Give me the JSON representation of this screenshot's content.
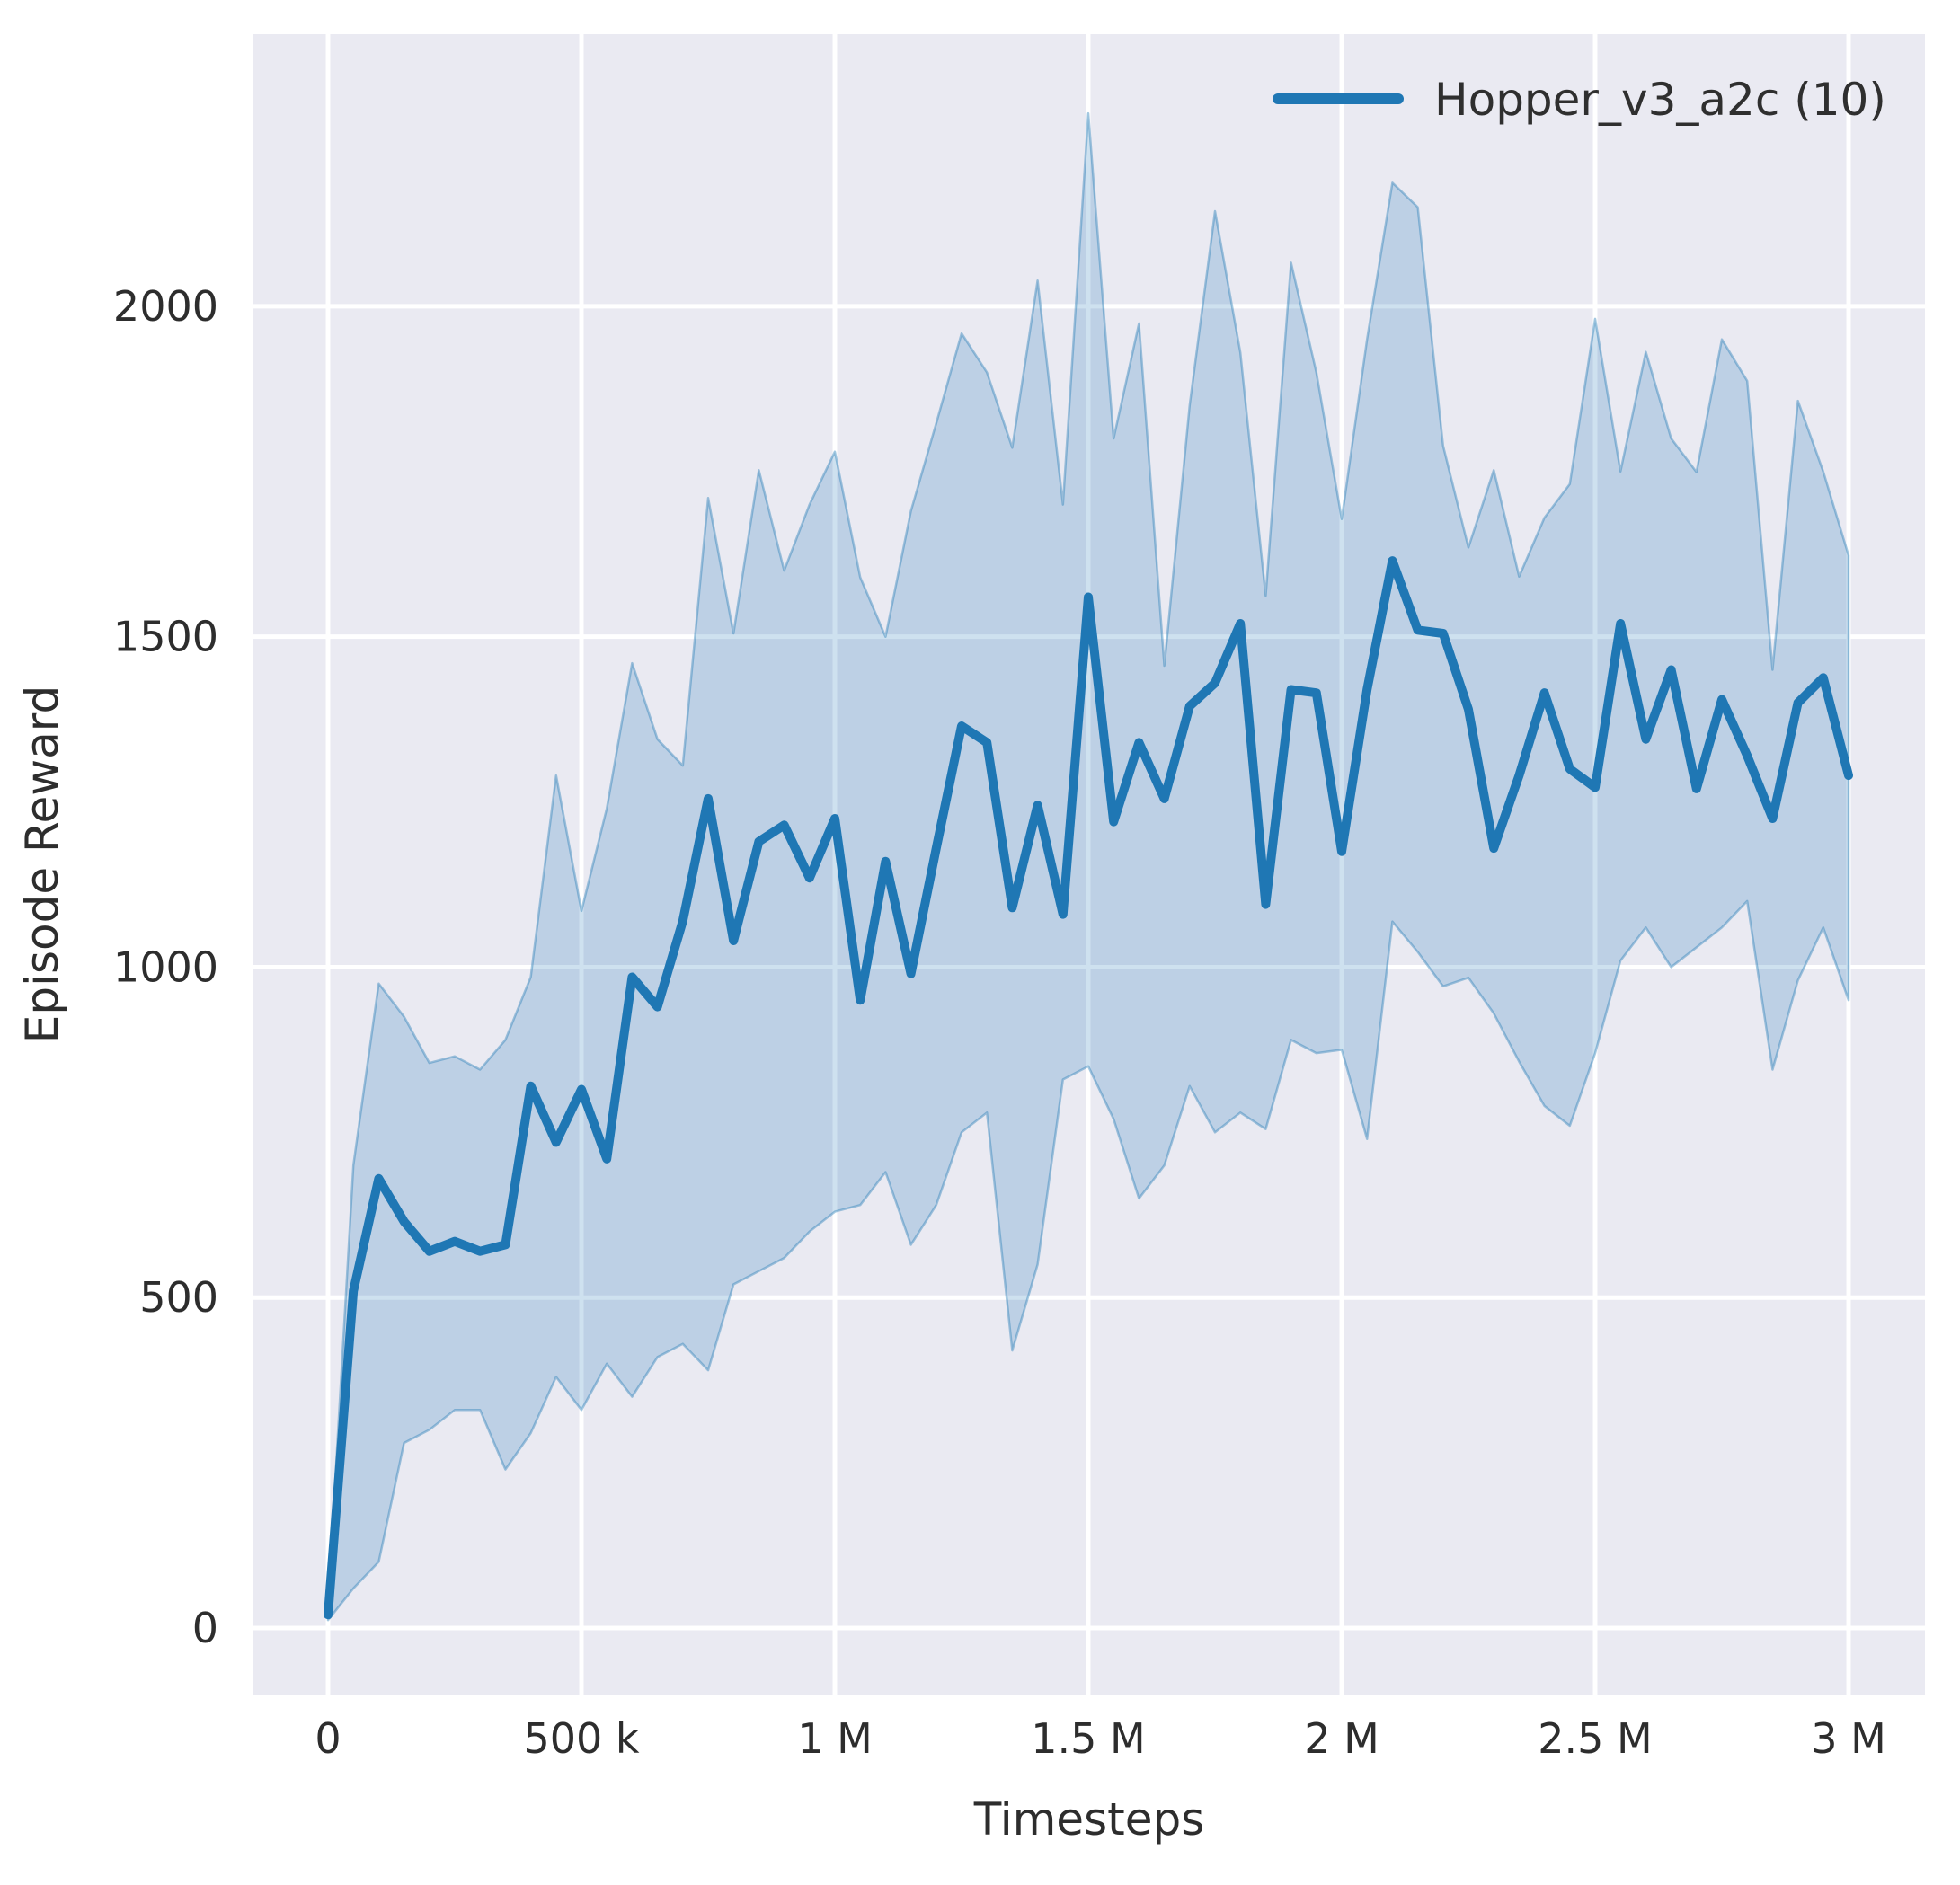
{
  "chart_data": {
    "type": "line",
    "title": "",
    "xlabel": "Timesteps",
    "ylabel": "Episode Reward",
    "grid": true,
    "legend_position": "upper right",
    "legend": [
      {
        "label": "Hopper_v3_a2c (10)",
        "color": "#1f77b4"
      }
    ],
    "x_ticks": [
      {
        "value_k": 0,
        "label": "0"
      },
      {
        "value_k": 500,
        "label": "500 k"
      },
      {
        "value_k": 1000,
        "label": "1 M"
      },
      {
        "value_k": 1500,
        "label": "1.5 M"
      },
      {
        "value_k": 2000,
        "label": "2 M"
      },
      {
        "value_k": 2500,
        "label": "2.5 M"
      },
      {
        "value_k": 3000,
        "label": "3 M"
      }
    ],
    "y_ticks": [
      {
        "value": 0,
        "label": "0"
      },
      {
        "value": 500,
        "label": "500"
      },
      {
        "value": 1000,
        "label": "1000"
      },
      {
        "value": 1500,
        "label": "1500"
      },
      {
        "value": 2000,
        "label": "2000"
      }
    ],
    "xlim_k": [
      -150,
      3150
    ],
    "ylim": [
      -100,
      2410
    ],
    "x_unit": "timesteps (thousands)",
    "series": [
      {
        "name": "Hopper_v3_a2c (10)",
        "color": "#1f77b4",
        "band_alpha": 0.22,
        "x_k": [
          0,
          50,
          100,
          150,
          200,
          250,
          300,
          350,
          400,
          450,
          500,
          550,
          600,
          650,
          700,
          750,
          800,
          850,
          900,
          950,
          1000,
          1050,
          1100,
          1150,
          1200,
          1250,
          1300,
          1350,
          1400,
          1450,
          1500,
          1550,
          1600,
          1650,
          1700,
          1750,
          1800,
          1850,
          1900,
          1950,
          2000,
          2050,
          2100,
          2150,
          2200,
          2250,
          2300,
          2350,
          2400,
          2450,
          2500,
          2550,
          2600,
          2650,
          2700,
          2750,
          2800,
          2850,
          2900,
          2950,
          3000
        ],
        "mean": [
          20,
          510,
          680,
          615,
          570,
          585,
          570,
          580,
          820,
          735,
          815,
          710,
          985,
          940,
          1070,
          1255,
          1040,
          1190,
          1215,
          1135,
          1225,
          950,
          1160,
          990,
          1180,
          1365,
          1340,
          1090,
          1245,
          1080,
          1560,
          1220,
          1340,
          1255,
          1395,
          1430,
          1520,
          1095,
          1420,
          1415,
          1175,
          1420,
          1615,
          1510,
          1505,
          1390,
          1180,
          1290,
          1415,
          1300,
          1272,
          1520,
          1345,
          1450,
          1270,
          1405,
          1320,
          1225,
          1400,
          1438,
          1290
        ],
        "band_low": [
          12,
          60,
          100,
          280,
          300,
          330,
          330,
          240,
          295,
          380,
          330,
          400,
          350,
          410,
          430,
          390,
          520,
          540,
          560,
          600,
          630,
          640,
          690,
          580,
          640,
          750,
          780,
          420,
          550,
          830,
          850,
          770,
          650,
          700,
          820,
          750,
          780,
          755,
          890,
          870,
          875,
          740,
          1069,
          1023,
          971,
          984,
          930,
          857,
          790,
          760,
          870,
          1010,
          1060,
          1000,
          1030,
          1060,
          1100,
          845,
          980,
          1060,
          950
        ],
        "band_high": [
          35,
          700,
          975,
          925,
          855,
          865,
          845,
          890,
          985,
          1290,
          1085,
          1240,
          1460,
          1345,
          1305,
          1710,
          1505,
          1752,
          1600,
          1700,
          1780,
          1590,
          1500,
          1690,
          1823,
          1959,
          1900,
          1786,
          2039,
          1700,
          2292,
          1800,
          1974,
          1456,
          1850,
          2144,
          1930,
          1562,
          2066,
          1900,
          1678,
          1950,
          2187,
          2150,
          1789,
          1635,
          1752,
          1591,
          1680,
          1731,
          1981,
          1750,
          1931,
          1800,
          1749,
          1950,
          1887,
          1450,
          1857,
          1750,
          1623
        ]
      }
    ]
  },
  "styles": {
    "figure_bg": "#ffffff",
    "axes_bg": "#eaeaf2",
    "grid_color": "#ffffff",
    "line_color": "#1f77b4",
    "band_fill_alpha": 0.22,
    "band_edge_alpha": 0.4,
    "text_color": "#2d2d2d"
  }
}
